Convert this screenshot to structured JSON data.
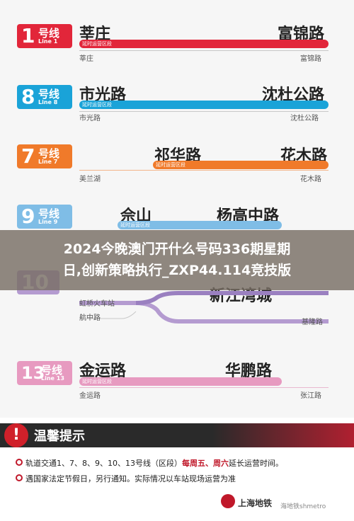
{
  "lines": [
    {
      "num": "1",
      "cn": "号线",
      "en": "Line 1",
      "color": "#e2263a",
      "start": "莘庄",
      "end": "富锦路",
      "bar_label": "延时运营区段",
      "small_left": "莘庄",
      "small_right": "富锦路"
    },
    {
      "num": "8",
      "cn": "号线",
      "en": "Line 8",
      "color": "#1aa3d8",
      "start": "市光路",
      "end": "沈杜公路",
      "bar_label": "延时运营区段",
      "small_left": "市光路",
      "small_right": "沈杜公路"
    },
    {
      "num": "7",
      "cn": "号线",
      "en": "Line 7",
      "color": "#f07a2a",
      "start": "祁华路",
      "end": "花木路",
      "bar_label": "延时运营区段",
      "small_left": "美兰湖",
      "small_right": "花木路"
    },
    {
      "num": "9",
      "cn": "号线",
      "en": "Line 9",
      "color": "#7fbde6",
      "start": "佘山",
      "end": "杨高中路",
      "bar_label": "延时运营区段",
      "small_left": "",
      "small_right": ""
    },
    {
      "num": "10",
      "cn": "",
      "en": "",
      "color": "#b49bd0",
      "start": "",
      "end": "新江湾城",
      "bar_label": "",
      "small_left": "虹桥火车站",
      "small_right": "基隆路",
      "small_left2": "航中路"
    },
    {
      "num": "13",
      "cn": "号线",
      "en": "Line 13",
      "color": "#e79ac0",
      "start": "金运路",
      "end": "华鹏路",
      "bar_label": "延时运营区段",
      "small_left": "金运路",
      "small_right": "张江路"
    }
  ],
  "overlay": {
    "line1": "2024今晚澳门开什么号码336期星期",
    "line2": "日,创新策略执行_ZXP44.114竞技版"
  },
  "notice": {
    "warn_symbol": "!",
    "title": "温馨提示",
    "item1_prefix": "轨道交通1、7、8、9、10、13号线（区段）",
    "item1_red": "每周五、周六",
    "item1_suffix": "延长运营时间。",
    "item2": "遇国家法定节假日，另行通知。实际情况以车站现场运营为准",
    "logo": "上海地铁",
    "watermark": "海地铁shmetro"
  }
}
